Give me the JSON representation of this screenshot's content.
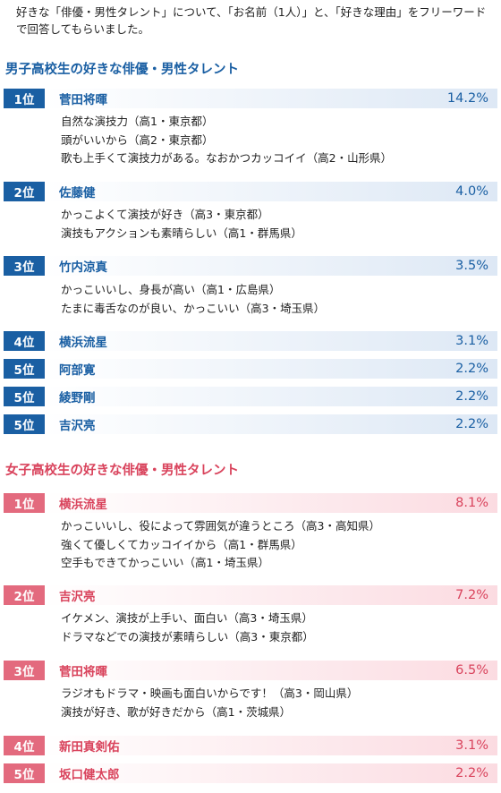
{
  "intro": "好きな「俳優・男性タレント」について、「お名前（1人）」と、「好きな理由」をフリーワードで回答してもらいました。",
  "boys": {
    "title": "男子高校生の好きな俳優・男性タレント",
    "ranks": [
      {
        "rank": "1位",
        "name": "菅田将暉",
        "percent": "14.2%",
        "reasons": [
          "自然な演技力（高1・東京都）",
          "頭がいいから（高2・東京都）",
          "歌も上手くて演技力がある。なおかつカッコイイ（高2・山形県）"
        ]
      },
      {
        "rank": "2位",
        "name": "佐藤健",
        "percent": "4.0%",
        "reasons": [
          "かっこよくて演技が好き（高3・東京都）",
          "演技もアクションも素晴らしい（高1・群馬県）"
        ]
      },
      {
        "rank": "3位",
        "name": "竹内涼真",
        "percent": "3.5%",
        "reasons": [
          "かっこいいし、身長が高い（高1・広島県）",
          "たまに毒舌なのが良い、かっこいい（高3・埼玉県）"
        ]
      },
      {
        "rank": "4位",
        "name": "横浜流星",
        "percent": "3.1%",
        "reasons": []
      },
      {
        "rank": "5位",
        "name": "阿部寛",
        "percent": "2.2%",
        "reasons": []
      },
      {
        "rank": "5位",
        "name": "綾野剛",
        "percent": "2.2%",
        "reasons": []
      },
      {
        "rank": "5位",
        "name": "吉沢亮",
        "percent": "2.2%",
        "reasons": []
      }
    ]
  },
  "girls": {
    "title": "女子高校生の好きな俳優・男性タレント",
    "ranks": [
      {
        "rank": "1位",
        "name": "横浜流星",
        "percent": "8.1%",
        "reasons": [
          "かっこいいし、役によって雰囲気が違うところ（高3・高知県）",
          "強くて優しくてカッコイイから（高1・群馬県）",
          "空手もできてかっこいい（高1・埼玉県）"
        ]
      },
      {
        "rank": "2位",
        "name": "吉沢亮",
        "percent": "7.2%",
        "reasons": [
          "イケメン、演技が上手い、面白い（高3・埼玉県）",
          "ドラマなどでの演技が素晴らしい（高3・東京都）"
        ]
      },
      {
        "rank": "3位",
        "name": "菅田将暉",
        "percent": "6.5%",
        "reasons": [
          "ラジオもドラマ・映画も面白いからです！（高3・岡山県）",
          "演技が好き、歌が好きだから（高1・茨城県）"
        ]
      },
      {
        "rank": "4位",
        "name": "新田真剣佑",
        "percent": "3.1%",
        "reasons": []
      },
      {
        "rank": "5位",
        "name": "坂口健太郎",
        "percent": "2.2%",
        "reasons": []
      }
    ]
  },
  "colors": {
    "boys_accent": "#1a5fa3",
    "girls_accent": "#e36a7e",
    "girls_text": "#d9435c"
  }
}
